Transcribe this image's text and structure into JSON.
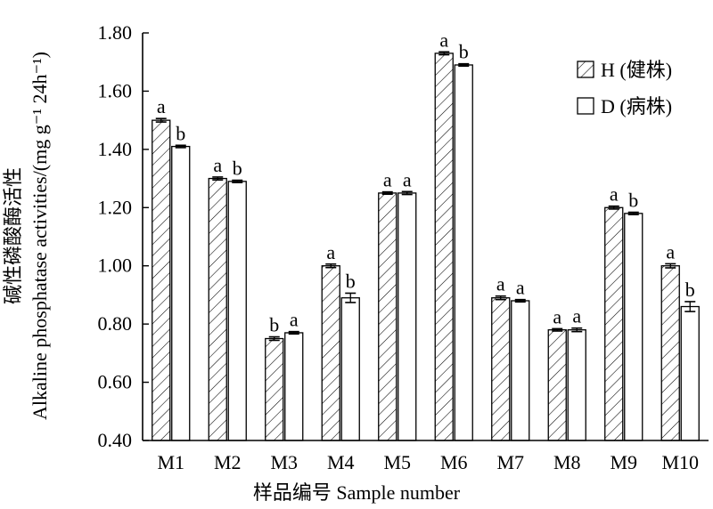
{
  "chart_data": {
    "type": "bar",
    "xlabel": "样品编号 Sample number",
    "ylabel": "碱性磷酸酶活性",
    "ylabel_sub": "Alkaline phosphatase activities/(mg g⁻¹ 24h⁻¹)",
    "ylim": [
      0.4,
      1.8
    ],
    "yticks": [
      0.4,
      0.6,
      0.8,
      1.0,
      1.2,
      1.4,
      1.6,
      1.8
    ],
    "ytick_labels": [
      "0.40",
      "0.60",
      "0.80",
      "1.00",
      "1.20",
      "1.40",
      "1.60",
      "1.80"
    ],
    "categories": [
      "M1",
      "M2",
      "M3",
      "M4",
      "M5",
      "M6",
      "M7",
      "M8",
      "M9",
      "M10"
    ],
    "legend_position": "top-right",
    "grid": false,
    "series": [
      {
        "name": "H (健株)",
        "pattern": "hatched",
        "values": [
          1.5,
          1.3,
          0.75,
          1.0,
          1.25,
          1.73,
          0.89,
          0.78,
          1.2,
          1.0
        ],
        "errors": [
          0.006,
          0.005,
          0.006,
          0.006,
          0.004,
          0.005,
          0.006,
          0.004,
          0.005,
          0.007
        ],
        "sig": [
          "a",
          "a",
          "b",
          "a",
          "a",
          "a",
          "a",
          "a",
          "a",
          "a"
        ]
      },
      {
        "name": "D (病株)",
        "pattern": "plain",
        "values": [
          1.41,
          1.29,
          0.77,
          0.89,
          1.25,
          1.69,
          0.88,
          0.78,
          1.18,
          0.86
        ],
        "errors": [
          0.004,
          0.004,
          0.004,
          0.016,
          0.005,
          0.004,
          0.004,
          0.006,
          0.004,
          0.017
        ],
        "sig": [
          "b",
          "b",
          "a",
          "b",
          "a",
          "b",
          "a",
          "a",
          "b",
          "b"
        ]
      }
    ]
  }
}
